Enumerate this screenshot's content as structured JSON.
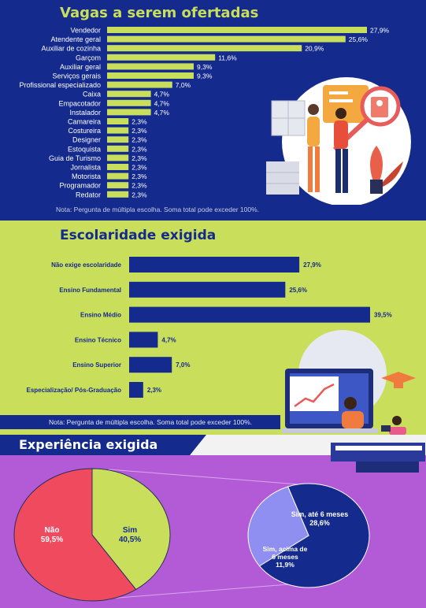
{
  "vagas": {
    "title": "Vagas a serem ofertadas",
    "note": "Nota: Pergunta de múltipla escolha. Soma total pode exceder 100%.",
    "chart_data": {
      "type": "bar",
      "orientation": "horizontal",
      "categories": [
        "Vendedor",
        "Atendente geral",
        "Auxiliar de cozinha",
        "Garçom",
        "Auxiliar geral",
        "Serviços gerais",
        "Profissional especializado",
        "Caixa",
        "Empacotador",
        "Instalador",
        "Camareira",
        "Costureira",
        "Designer",
        "Estoquista",
        "Guia de Turismo",
        "Jornalista",
        "Motorista",
        "Programador",
        "Redator"
      ],
      "values": [
        27.9,
        25.6,
        20.9,
        11.6,
        9.3,
        9.3,
        7.0,
        4.7,
        4.7,
        4.7,
        2.3,
        2.3,
        2.3,
        2.3,
        2.3,
        2.3,
        2.3,
        2.3,
        2.3
      ],
      "labels": [
        "27,9%",
        "25,6%",
        "20,9%",
        "11,6%",
        "9,3%",
        "9,3%",
        "7,0%",
        "4,7%",
        "4,7%",
        "4,7%",
        "2,3%",
        "2,3%",
        "2,3%",
        "2,3%",
        "2,3%",
        "2,3%",
        "2,3%",
        "2,3%",
        "2,3%"
      ],
      "bar_color": "#c9df5c"
    }
  },
  "escolaridade": {
    "title": "Escolaridade exigida",
    "note": "Nota: Pergunta de múltipla escolha. Soma total pode exceder 100%.",
    "chart_data": {
      "type": "bar",
      "orientation": "horizontal",
      "categories": [
        "Não exige escolaridade",
        "Ensino Fundamental",
        "Ensino Médio",
        "Ensino Técnico",
        "Ensino Superior",
        "Especialização/ Pós-Graduação"
      ],
      "values": [
        27.9,
        25.6,
        39.5,
        4.7,
        7.0,
        2.3
      ],
      "labels": [
        "27,9%",
        "25,6%",
        "39,5%",
        "4,7%",
        "7,0%",
        "2,3%"
      ],
      "bar_color": "#142a8c"
    }
  },
  "experiencia": {
    "title": "Experiência exigida",
    "chart_data": [
      {
        "type": "pie",
        "categories": [
          "Não",
          "Sim"
        ],
        "values": [
          59.5,
          40.5
        ],
        "labels": [
          "59,5%",
          "40,5%"
        ],
        "colors": [
          "#f04a5e",
          "#c9df5c"
        ]
      },
      {
        "type": "pie",
        "categories": [
          "Sim, até 6 meses",
          "Sim, acima de 6 meses"
        ],
        "values": [
          28.6,
          11.9
        ],
        "labels": [
          "28,6%",
          "11,9%"
        ],
        "colors": [
          "#142a8c",
          "#8e8ff0"
        ]
      }
    ]
  }
}
